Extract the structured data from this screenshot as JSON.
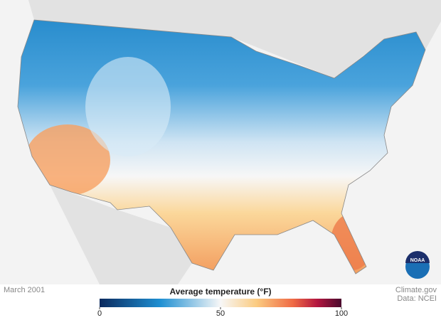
{
  "date": "March 2001",
  "legend": {
    "title": "Average temperature (°F)",
    "range": [
      0,
      100
    ],
    "ticks": [
      0,
      50,
      100
    ]
  },
  "credit": {
    "source": "Climate.gov",
    "data": "Data: NCEI"
  },
  "logo": "NOAA"
}
